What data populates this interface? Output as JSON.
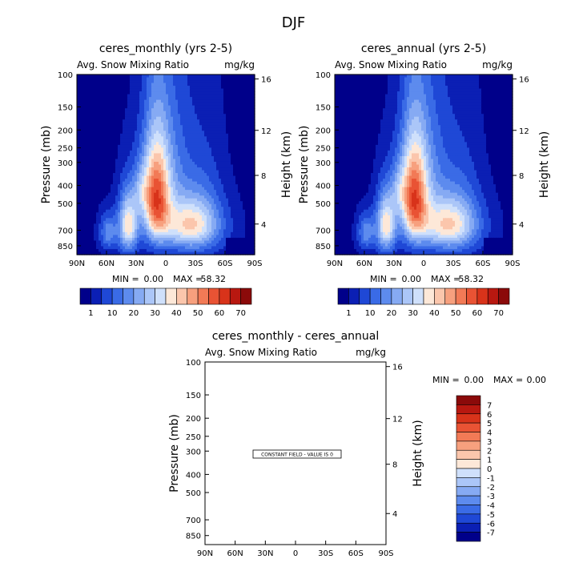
{
  "page_title": "DJF",
  "chart_data": [
    {
      "type": "heatmap",
      "title": "ceres_monthly (yrs 2-5)",
      "subtitle_left": "Avg. Snow Mixing Ratio",
      "subtitle_right": "mg/kg",
      "ylabel": "Pressure (mb)",
      "ylabel_right": "Height (km)",
      "x_ticks": [
        "90N",
        "60N",
        "30N",
        "0",
        "30S",
        "60S",
        "90S"
      ],
      "y_ticks": [
        "100",
        "150",
        "200",
        "250",
        "300",
        "400",
        "500",
        "700",
        "850"
      ],
      "y_right_ticks": [
        "16",
        "12",
        "8",
        "4"
      ],
      "min_label": "MIN =",
      "min_value": "0.00",
      "max_label": "MAX =",
      "max_value": "58.32",
      "levels": [
        "1",
        "10",
        "20",
        "30",
        "40",
        "50",
        "60",
        "70"
      ],
      "colorbar": [
        "#00008a",
        "#0b1fb4",
        "#1f48d6",
        "#3a6be6",
        "#5d8bee",
        "#86aaf3",
        "#abc6f8",
        "#cfe0fb",
        "#fde8d8",
        "#fbc6ac",
        "#f7a07e",
        "#f27a56",
        "#e95334",
        "#d8331a",
        "#b81810",
        "#8b0a0a"
      ]
    },
    {
      "type": "heatmap",
      "title": "ceres_annual (yrs 2-5)",
      "subtitle_left": "Avg. Snow Mixing Ratio",
      "subtitle_right": "mg/kg",
      "ylabel": "Pressure (mb)",
      "ylabel_right": "Height (km)",
      "x_ticks": [
        "90N",
        "60N",
        "30N",
        "0",
        "30S",
        "60S",
        "90S"
      ],
      "y_ticks": [
        "100",
        "150",
        "200",
        "250",
        "300",
        "400",
        "500",
        "700",
        "850"
      ],
      "y_right_ticks": [
        "16",
        "12",
        "8",
        "4"
      ],
      "min_label": "MIN =",
      "min_value": "0.00",
      "max_label": "MAX =",
      "max_value": "58.32",
      "levels": [
        "1",
        "10",
        "20",
        "30",
        "40",
        "50",
        "60",
        "70"
      ],
      "colorbar": [
        "#00008a",
        "#0b1fb4",
        "#1f48d6",
        "#3a6be6",
        "#5d8bee",
        "#86aaf3",
        "#abc6f8",
        "#cfe0fb",
        "#fde8d8",
        "#fbc6ac",
        "#f7a07e",
        "#f27a56",
        "#e95334",
        "#d8331a",
        "#b81810",
        "#8b0a0a"
      ]
    },
    {
      "type": "heatmap",
      "title": "ceres_monthly - ceres_annual",
      "subtitle_left": "Avg. Snow Mixing Ratio",
      "subtitle_right": "mg/kg",
      "ylabel": "Pressure (mb)",
      "ylabel_right": "Height (km)",
      "x_ticks": [
        "90N",
        "60N",
        "30N",
        "0",
        "30S",
        "60S",
        "90S"
      ],
      "y_ticks": [
        "100",
        "150",
        "200",
        "250",
        "300",
        "400",
        "500",
        "700",
        "850"
      ],
      "y_right_ticks": [
        "16",
        "12",
        "8",
        "4"
      ],
      "min_label": "MIN =",
      "min_value": "0.00",
      "max_label": "MAX =",
      "max_value": "0.00",
      "note": "CONSTANT FIELD - VALUE IS 0",
      "levels": [
        "7",
        "6",
        "5",
        "4",
        "3",
        "2",
        "1",
        "0",
        "-1",
        "-2",
        "-3",
        "-4",
        "-5",
        "-6",
        "-7"
      ],
      "colorbar": [
        "#8b0a0a",
        "#b81810",
        "#d8331a",
        "#e95334",
        "#f27a56",
        "#f7a07e",
        "#fbc6ac",
        "#fde8d8",
        "#cfe0fb",
        "#abc6f8",
        "#86aaf3",
        "#5d8bee",
        "#3a6be6",
        "#1f48d6",
        "#0b1fb4",
        "#00008a"
      ]
    }
  ]
}
